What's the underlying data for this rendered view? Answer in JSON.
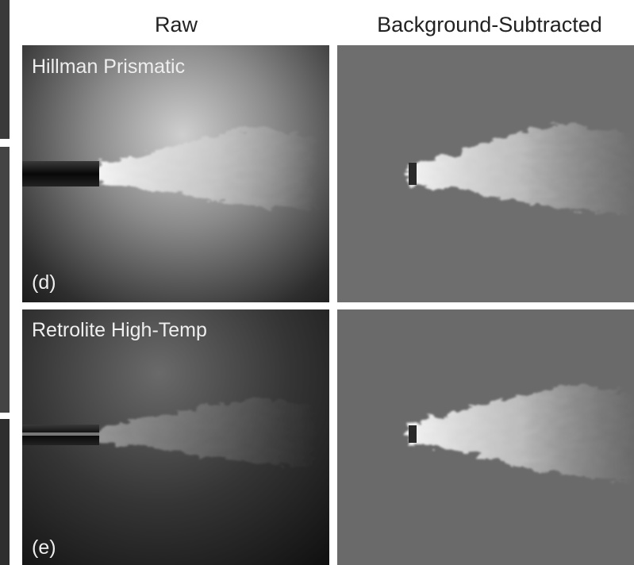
{
  "column_headers": [
    "Raw",
    "Background-Subtracted"
  ],
  "rows": [
    {
      "label": "Hillman Prismatic",
      "panel": "(d)"
    },
    {
      "label": "Retrolite High-Temp",
      "panel": "(e)"
    }
  ]
}
